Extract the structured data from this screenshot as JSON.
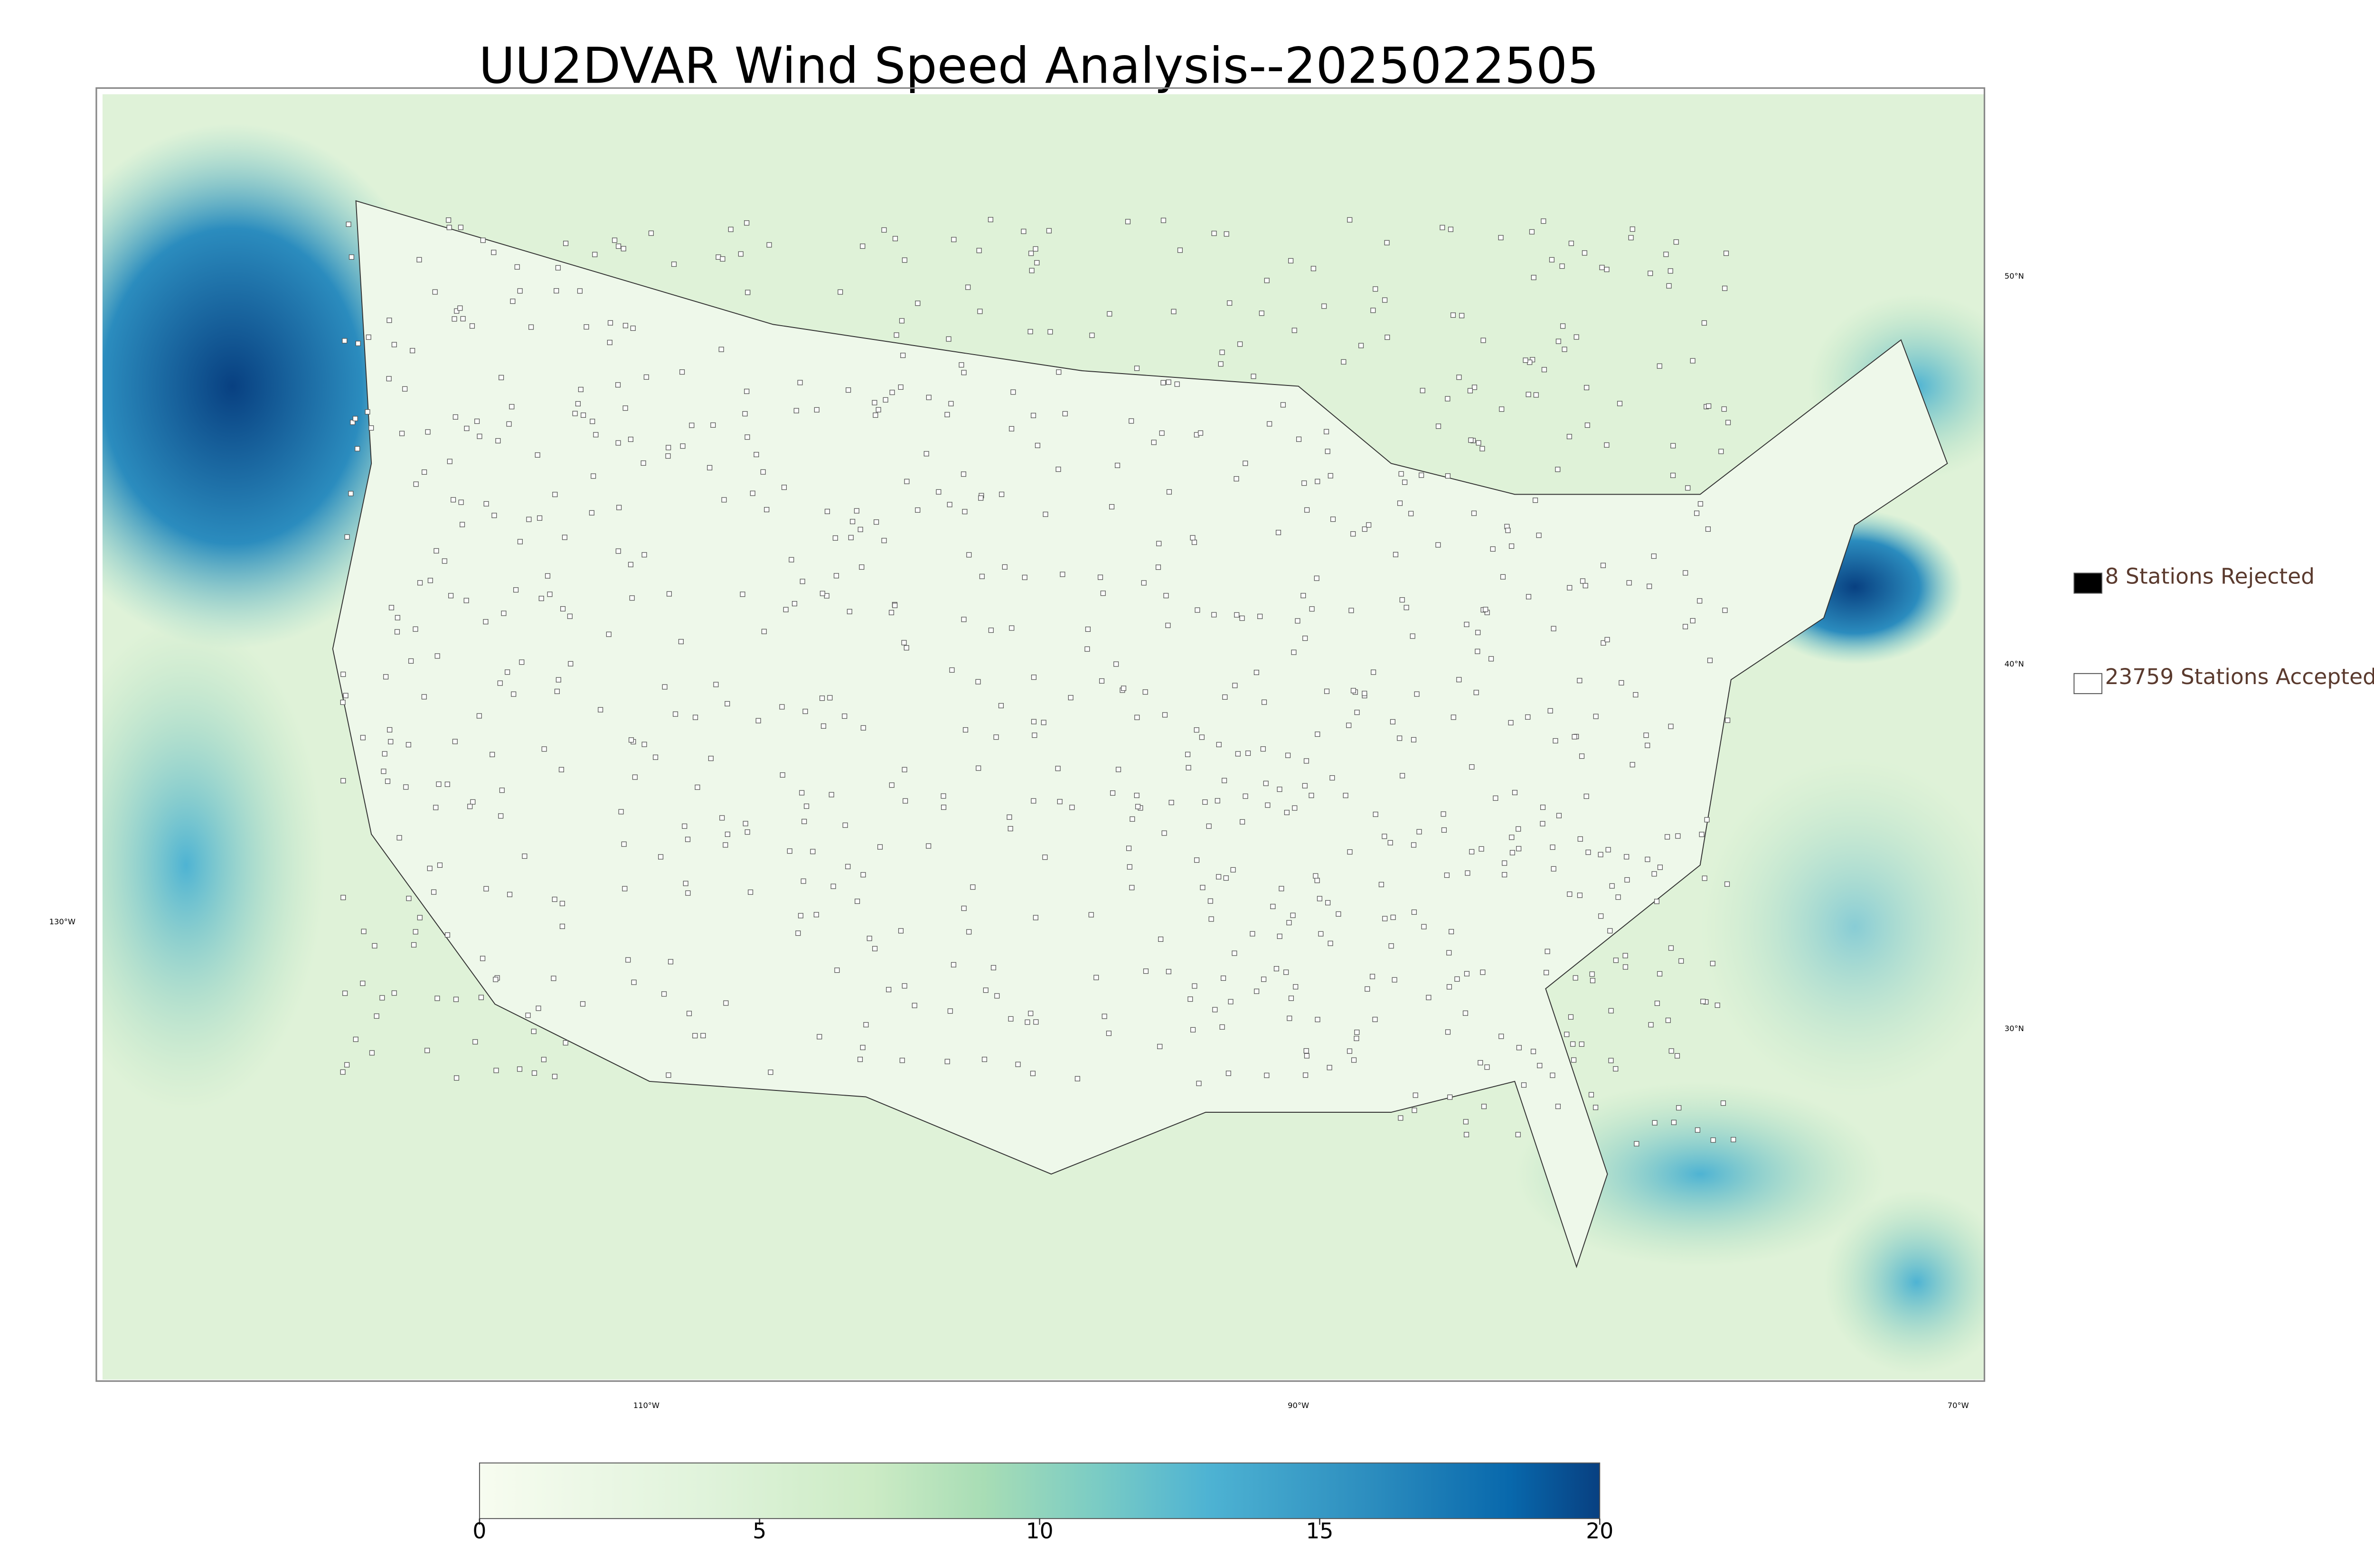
{
  "title": "UU2DVAR Wind Speed Analysis--2025022505",
  "legend": [
    {
      "label": "8 Stations Rejected",
      "color": "#000000"
    },
    {
      "label": "23759 Stations Accepted",
      "color": "#ffffff"
    }
  ],
  "latitude_labels": [
    "50°N",
    "40°N",
    "30°N"
  ],
  "longitude_labels": [
    "130°W",
    "110°W",
    "90°W",
    "70°W"
  ],
  "colorbar": {
    "lim": [
      0,
      20
    ],
    "ticks": [
      0,
      5,
      10,
      15,
      20
    ]
  }
}
